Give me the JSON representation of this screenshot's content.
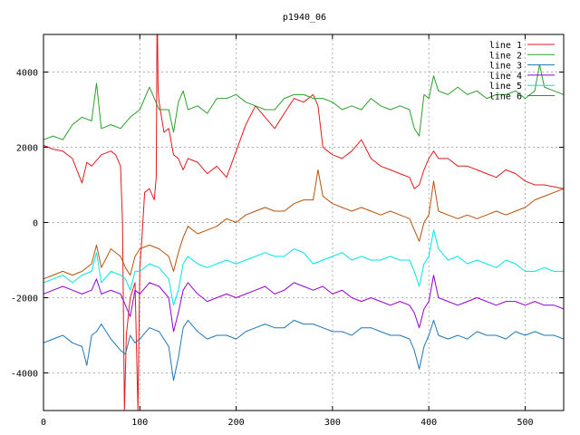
{
  "chart_data": {
    "type": "line",
    "title": "p1940_06",
    "xlabel": "",
    "ylabel": "",
    "xlim": [
      0,
      540
    ],
    "ylim": [
      -5000,
      5000
    ],
    "xticks": [
      0,
      100,
      200,
      300,
      400,
      500
    ],
    "yticks": [
      -4000,
      -2000,
      0,
      2000,
      4000
    ],
    "grid": true,
    "legend_position": "top-right",
    "series": [
      {
        "name": "line 1",
        "color": "#e41a1c",
        "x": [
          0,
          10,
          20,
          30,
          40,
          45,
          50,
          60,
          70,
          75,
          80,
          82,
          84,
          86,
          90,
          95,
          98,
          100,
          102,
          105,
          110,
          115,
          117,
          118,
          119,
          120,
          125,
          130,
          135,
          140,
          145,
          150,
          160,
          170,
          180,
          190,
          200,
          210,
          220,
          230,
          240,
          250,
          260,
          270,
          280,
          285,
          290,
          295,
          300,
          310,
          320,
          330,
          340,
          350,
          360,
          370,
          380,
          385,
          390,
          395,
          400,
          405,
          410,
          420,
          430,
          440,
          450,
          460,
          470,
          480,
          490,
          500,
          510,
          520,
          530,
          540
        ],
        "y": [
          2050,
          1950,
          1900,
          1700,
          1050,
          1600,
          1500,
          1800,
          1900,
          1800,
          1500,
          0,
          -5000,
          -3000,
          -2000,
          -1600,
          -5000,
          -1200,
          -500,
          800,
          900,
          600,
          1200,
          6000,
          3500,
          3200,
          2400,
          2500,
          1800,
          1700,
          1400,
          1700,
          1600,
          1300,
          1500,
          1200,
          1900,
          2600,
          3100,
          2800,
          2500,
          2900,
          3300,
          3200,
          3400,
          3100,
          2000,
          1900,
          1800,
          1700,
          1900,
          2200,
          1700,
          1500,
          1400,
          1300,
          1200,
          900,
          1000,
          1400,
          1700,
          1900,
          1700,
          1700,
          1500,
          1500,
          1400,
          1300,
          1200,
          1400,
          1300,
          1100,
          1000,
          1000,
          950,
          900
        ]
      },
      {
        "name": "line 2",
        "color": "#2ca02c",
        "x": [
          0,
          10,
          20,
          30,
          40,
          50,
          55,
          60,
          70,
          80,
          90,
          100,
          110,
          120,
          130,
          135,
          140,
          145,
          150,
          160,
          170,
          180,
          190,
          200,
          210,
          220,
          230,
          240,
          250,
          260,
          270,
          280,
          290,
          300,
          310,
          320,
          330,
          340,
          350,
          360,
          370,
          380,
          385,
          390,
          395,
          400,
          405,
          410,
          420,
          430,
          440,
          450,
          460,
          470,
          480,
          490,
          500,
          510,
          515,
          520,
          530,
          540
        ],
        "y": [
          2200,
          2300,
          2200,
          2600,
          2800,
          2700,
          3700,
          2500,
          2600,
          2500,
          2800,
          3000,
          3600,
          3000,
          3000,
          2400,
          3200,
          3500,
          3000,
          3100,
          2900,
          3300,
          3300,
          3400,
          3200,
          3100,
          3000,
          3000,
          3300,
          3400,
          3400,
          3300,
          3300,
          3200,
          3000,
          3100,
          3000,
          3300,
          3100,
          3000,
          3100,
          3000,
          2500,
          2300,
          3400,
          3300,
          3900,
          3500,
          3400,
          3600,
          3400,
          3500,
          3300,
          3400,
          3400,
          3500,
          3300,
          3500,
          4200,
          3600,
          3500,
          3400
        ]
      },
      {
        "name": "line 3",
        "color": "#1f77b4",
        "x": [
          0,
          10,
          20,
          30,
          40,
          45,
          50,
          55,
          60,
          70,
          80,
          85,
          90,
          95,
          100,
          110,
          120,
          130,
          135,
          140,
          145,
          150,
          160,
          170,
          180,
          190,
          200,
          210,
          220,
          230,
          240,
          250,
          260,
          270,
          280,
          290,
          300,
          310,
          320,
          330,
          340,
          350,
          360,
          370,
          380,
          385,
          390,
          395,
          400,
          405,
          410,
          420,
          430,
          440,
          450,
          460,
          470,
          480,
          490,
          500,
          510,
          520,
          530,
          540
        ],
        "y": [
          -3200,
          -3100,
          -3000,
          -3200,
          -3300,
          -3800,
          -3000,
          -2900,
          -2700,
          -3100,
          -3400,
          -3500,
          -3000,
          -3200,
          -3100,
          -2800,
          -2900,
          -3300,
          -4200,
          -3600,
          -2800,
          -2600,
          -2900,
          -3100,
          -3000,
          -3000,
          -3100,
          -2900,
          -2800,
          -2700,
          -2800,
          -2800,
          -2600,
          -2700,
          -2700,
          -2800,
          -2900,
          -2900,
          -3000,
          -2800,
          -2800,
          -2900,
          -3000,
          -3000,
          -3100,
          -3400,
          -3900,
          -3300,
          -3000,
          -2600,
          -3000,
          -3100,
          -3000,
          -3100,
          -2900,
          -3000,
          -3000,
          -3100,
          -2900,
          -3000,
          -2900,
          -3000,
          -3000,
          -3100
        ]
      },
      {
        "name": "line 4",
        "color": "#9400d3",
        "x": [
          0,
          10,
          20,
          30,
          40,
          50,
          55,
          60,
          70,
          80,
          85,
          90,
          95,
          100,
          110,
          120,
          130,
          135,
          140,
          145,
          150,
          160,
          170,
          180,
          190,
          200,
          210,
          220,
          230,
          240,
          250,
          260,
          270,
          280,
          290,
          300,
          310,
          320,
          330,
          340,
          350,
          360,
          370,
          380,
          385,
          390,
          395,
          400,
          405,
          410,
          420,
          430,
          440,
          450,
          460,
          470,
          480,
          490,
          500,
          510,
          520,
          530,
          540
        ],
        "y": [
          -1900,
          -1800,
          -1700,
          -1800,
          -1900,
          -1800,
          -1500,
          -1900,
          -1800,
          -1900,
          -2200,
          -2500,
          -1800,
          -1900,
          -1600,
          -1700,
          -2000,
          -2900,
          -2400,
          -1800,
          -1600,
          -1900,
          -2100,
          -2000,
          -1900,
          -2000,
          -1900,
          -1800,
          -1700,
          -1900,
          -1800,
          -1600,
          -1700,
          -1800,
          -1700,
          -1900,
          -1800,
          -2000,
          -2100,
          -2000,
          -2100,
          -2200,
          -2100,
          -2200,
          -2400,
          -2800,
          -2300,
          -2100,
          -1400,
          -2000,
          -2100,
          -2200,
          -2100,
          -2000,
          -2100,
          -2200,
          -2100,
          -2100,
          -2200,
          -2100,
          -2200,
          -2200,
          -2300
        ]
      },
      {
        "name": "line 5",
        "color": "#00e5e5",
        "x": [
          0,
          10,
          20,
          30,
          40,
          50,
          55,
          60,
          70,
          80,
          85,
          90,
          95,
          100,
          110,
          120,
          130,
          135,
          140,
          145,
          150,
          160,
          170,
          180,
          190,
          200,
          210,
          220,
          230,
          240,
          250,
          260,
          270,
          280,
          290,
          300,
          310,
          320,
          330,
          340,
          350,
          360,
          370,
          380,
          385,
          390,
          395,
          400,
          405,
          410,
          420,
          430,
          440,
          450,
          460,
          470,
          480,
          490,
          500,
          510,
          520,
          530,
          540
        ],
        "y": [
          -1600,
          -1500,
          -1400,
          -1600,
          -1400,
          -1300,
          -800,
          -1600,
          -1300,
          -1400,
          -1500,
          -1800,
          -1300,
          -1300,
          -1100,
          -1200,
          -1500,
          -2200,
          -1800,
          -1100,
          -900,
          -1100,
          -1200,
          -1100,
          -1000,
          -1100,
          -1000,
          -900,
          -800,
          -900,
          -900,
          -700,
          -800,
          -1100,
          -1000,
          -900,
          -800,
          -1000,
          -900,
          -1000,
          -1000,
          -900,
          -1000,
          -1000,
          -1300,
          -1700,
          -1100,
          -900,
          -200,
          -700,
          -1000,
          -900,
          -1100,
          -1000,
          -1100,
          -1200,
          -1000,
          -1100,
          -1300,
          -1300,
          -1200,
          -1300,
          -1300
        ]
      },
      {
        "name": "line 6",
        "color": "#b8510a",
        "x": [
          0,
          10,
          20,
          30,
          40,
          50,
          55,
          60,
          70,
          80,
          85,
          90,
          95,
          100,
          110,
          120,
          130,
          135,
          140,
          145,
          150,
          160,
          170,
          180,
          190,
          200,
          210,
          220,
          230,
          240,
          250,
          260,
          270,
          280,
          285,
          290,
          300,
          310,
          320,
          330,
          340,
          350,
          360,
          370,
          380,
          385,
          390,
          395,
          400,
          405,
          410,
          420,
          430,
          440,
          450,
          460,
          470,
          480,
          490,
          500,
          510,
          520,
          530,
          540
        ],
        "y": [
          -1500,
          -1400,
          -1300,
          -1400,
          -1300,
          -1100,
          -600,
          -1200,
          -700,
          -900,
          -1200,
          -1400,
          -900,
          -700,
          -600,
          -700,
          -900,
          -1300,
          -800,
          -400,
          -100,
          -300,
          -200,
          -100,
          100,
          0,
          200,
          300,
          400,
          300,
          300,
          500,
          600,
          600,
          1400,
          700,
          500,
          400,
          300,
          400,
          300,
          200,
          300,
          200,
          100,
          -200,
          -500,
          0,
          200,
          1100,
          300,
          200,
          100,
          200,
          100,
          200,
          300,
          200,
          300,
          400,
          600,
          700,
          800,
          900
        ]
      }
    ]
  }
}
